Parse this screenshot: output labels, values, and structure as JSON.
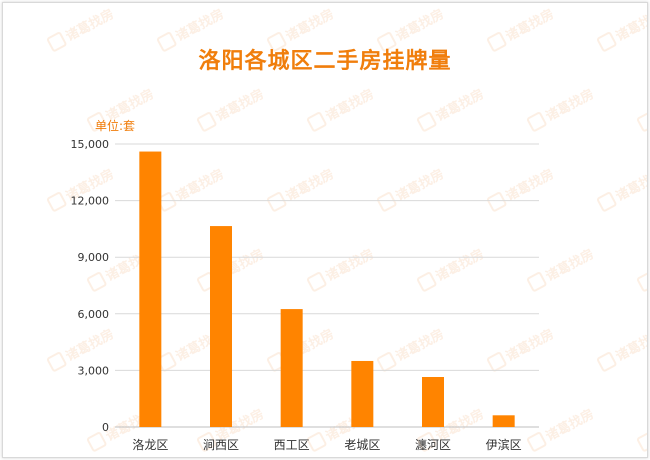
{
  "chart_data": {
    "type": "bar",
    "title": "洛阳各城区二手房挂牌量",
    "unit_label": "单位:套",
    "categories": [
      "洛龙区",
      "涧西区",
      "西工区",
      "老城区",
      "瀍河区",
      "伊滨区"
    ],
    "values": [
      14600,
      10650,
      6250,
      3500,
      2650,
      620
    ],
    "ylim": [
      0,
      15000
    ],
    "yticks": [
      0,
      3000,
      6000,
      9000,
      12000,
      15000
    ],
    "ytick_labels": [
      "0",
      "3,000",
      "6,000",
      "9,000",
      "12,000",
      "15,000"
    ],
    "bar_color": "#ff8400",
    "grid": true,
    "legend": "none"
  },
  "watermark": {
    "text": "诸葛找房",
    "color": "#f6b98a"
  },
  "colors": {
    "title": "#f07e0c",
    "axis_text": "#333333",
    "grid": "#d9d9d9"
  }
}
